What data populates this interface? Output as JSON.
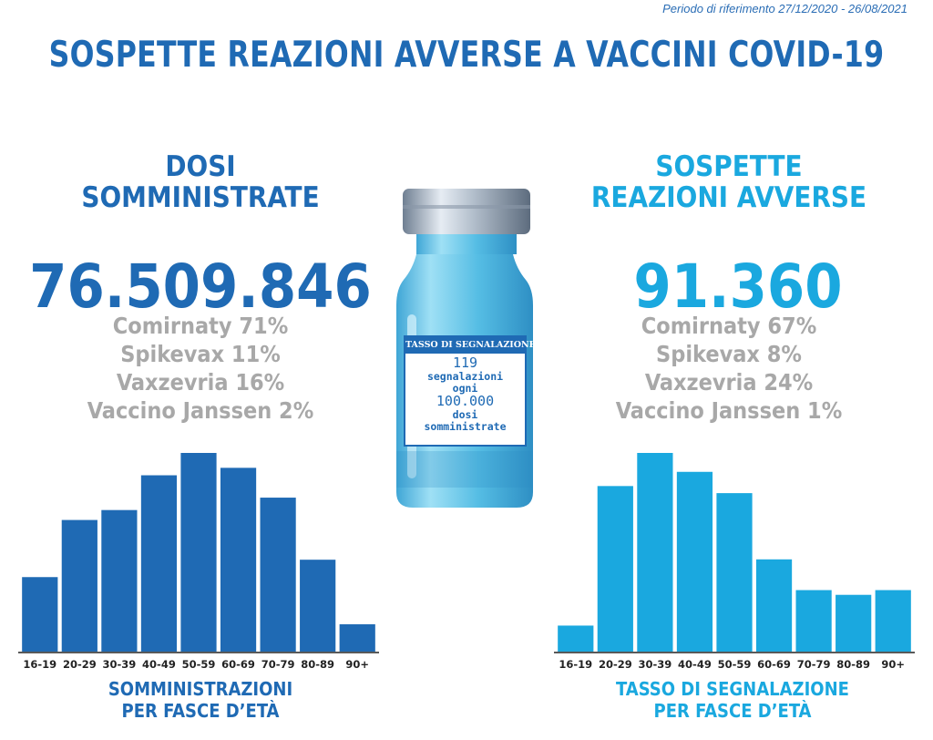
{
  "period": "Periodo di riferimento 27/12/2020 - 26/08/2021",
  "title": "SOSPETTE REAZIONI AVVERSE A VACCINI COVID-19",
  "colors": {
    "dark_blue": "#1f6ab4",
    "light_blue": "#1aa8df",
    "grey": "#a8a8a8"
  },
  "left": {
    "heading_line1": "DOSI",
    "heading_line2": "SOMMINISTRATE",
    "total": "76.509.846",
    "brands": [
      "Comirnaty 71%",
      "Spikevax 11%",
      "Vaxzevria 16%",
      "Vaccino Janssen 2%"
    ],
    "caption_line1": "SOMMINISTRAZIONI",
    "caption_line2": "PER FASCE D’ETÀ"
  },
  "right": {
    "heading_line1": "SOSPETTE",
    "heading_line2": "REAZIONI AVVERSE",
    "total": "91.360",
    "brands": [
      "Comirnaty 67%",
      "Spikevax 8%",
      "Vaxzevria 24%",
      "Vaccino Janssen 1%"
    ],
    "caption_line1": "TASSO DI SEGNALAZIONE",
    "caption_line2": "PER FASCE D’ETÀ"
  },
  "vial": {
    "header": "TASSO DI SEGNALAZIONE",
    "num1": "119",
    "text1_line1": "segnalazioni",
    "text1_line2": "ogni",
    "num2": "100.000",
    "text2_line1": "dosi",
    "text2_line2": "somministrate"
  },
  "chart_data": [
    {
      "type": "bar",
      "categories": [
        "16-19",
        "20-29",
        "30-39",
        "40-49",
        "50-59",
        "60-69",
        "70-79",
        "80-89",
        "90+"
      ],
      "values": [
        30,
        53,
        57,
        71,
        80,
        74,
        62,
        37,
        11
      ],
      "ylim": [
        0,
        80
      ],
      "grid": false,
      "color": "#1f6ab4"
    },
    {
      "type": "bar",
      "categories": [
        "16-19",
        "20-29",
        "30-39",
        "40-49",
        "50-59",
        "60-69",
        "70-79",
        "80-89",
        "90+"
      ],
      "values": [
        11,
        70,
        84,
        76,
        67,
        39,
        26,
        24,
        26
      ],
      "ylim": [
        0,
        84
      ],
      "grid": false,
      "color": "#1aa8df"
    }
  ]
}
